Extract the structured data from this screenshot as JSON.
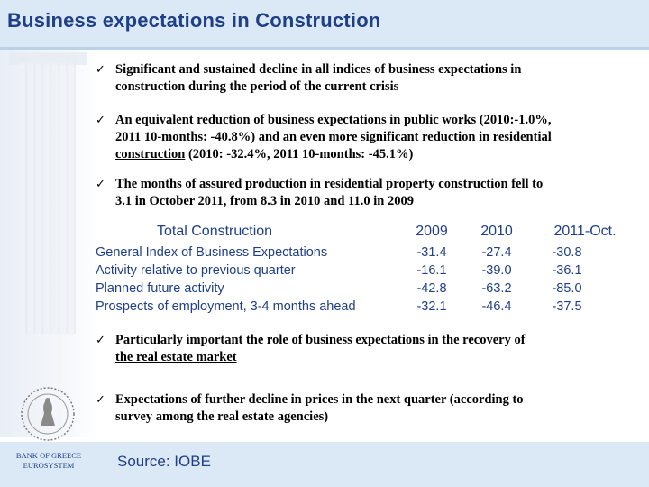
{
  "title": "Business expectations in Construction",
  "bullets": [
    {
      "lines": [
        "Significant and sustained decline in all indices of business expectations in",
        "construction during the period of the current crisis"
      ]
    },
    {
      "lines": [
        "An equivalent reduction of business expectations in public works (2010:-1.0%,",
        "2011 10-months: -40.8%) and an even more significant reduction ",
        "in residential",
        "construction",
        " (2010: -32.4%, 2011 10-months: -45.1%)"
      ]
    },
    {
      "lines": [
        "The months of assured production in residential property construction fell to",
        "3.1 in October 2011, from 8.3 in 2010 and 11.0 in 2009"
      ]
    },
    {
      "lines": [
        "Particularly important the role of business expectations in the recovery of",
        "the real estate market"
      ]
    },
    {
      "lines": [
        "Expectations of further decline in prices in the next quarter (according to",
        "survey among the real estate agencies)"
      ]
    }
  ],
  "check_glyph": "✓",
  "table": {
    "headers": [
      "Total Construction",
      "2009",
      "2010",
      "2011-Oct."
    ],
    "rows": [
      {
        "label": "General Index of Business Expectations",
        "values": [
          "-31.4",
          "-27.4",
          "-30.8"
        ]
      },
      {
        "label": "Activity relative to previous quarter",
        "values": [
          "-16.1",
          "-39.0",
          "-36.1"
        ]
      },
      {
        "label": "Planned future activity",
        "values": [
          "-42.8",
          "-63.2",
          "-85.0"
        ]
      },
      {
        "label": "Prospects of employment, 3-4 months ahead",
        "values": [
          "-32.1",
          "-46.4",
          "-37.5"
        ]
      }
    ]
  },
  "footer": {
    "bank_line1": "BANK OF GREECE",
    "bank_line2": "EUROSYSTEM",
    "source": "Source: IOBE"
  },
  "colors": {
    "title": "#1f3f86",
    "band": "#dbe9f6"
  },
  "icons": {
    "check": "check-icon",
    "emblem": "bank-emblem-icon"
  }
}
